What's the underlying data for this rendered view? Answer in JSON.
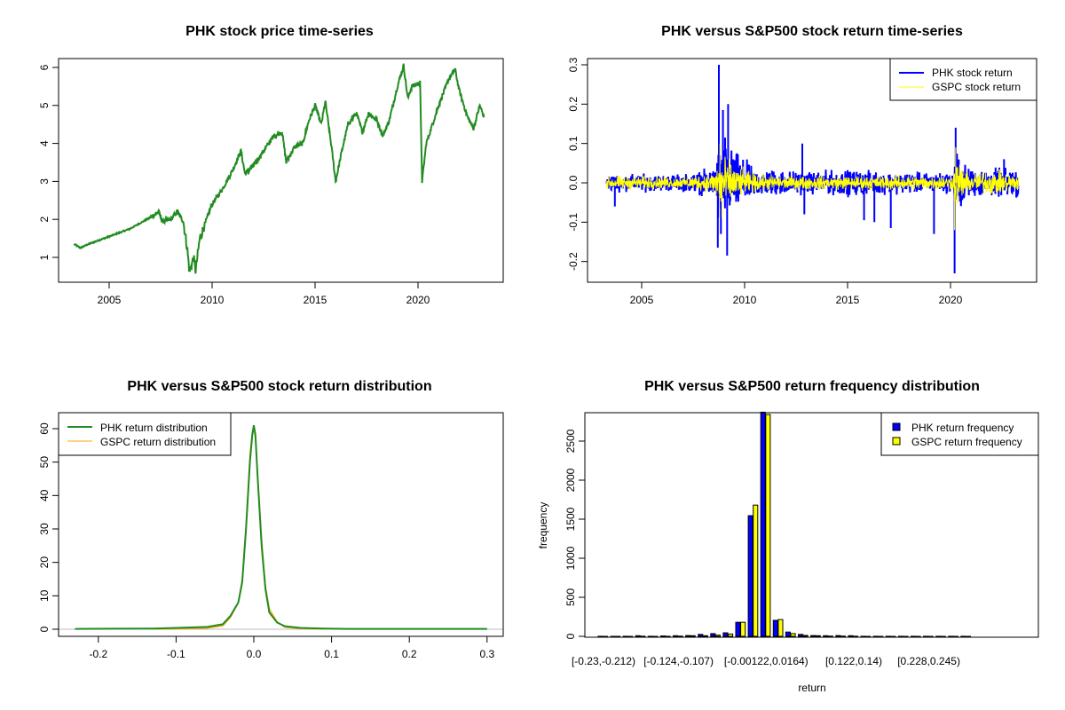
{
  "chart_data": [
    {
      "type": "line",
      "title": "PHK stock price time-series",
      "xlabel": "",
      "ylabel": "",
      "xticks": [
        "2005",
        "2010",
        "2015",
        "2020"
      ],
      "yticks": [
        "1",
        "2",
        "3",
        "4",
        "5",
        "6"
      ],
      "xlim": [
        2003.3,
        2023.3
      ],
      "ylim": [
        0.55,
        6.05
      ],
      "color": "#228B22",
      "x": [
        2003.3,
        2003.6,
        2004.0,
        2004.5,
        2005.0,
        2005.5,
        2006.0,
        2006.5,
        2007.0,
        2007.4,
        2007.6,
        2008.0,
        2008.3,
        2008.6,
        2008.8,
        2008.9,
        2009.1,
        2009.2,
        2009.4,
        2009.6,
        2010.0,
        2010.5,
        2011.0,
        2011.4,
        2011.6,
        2012.0,
        2012.5,
        2013.0,
        2013.4,
        2013.6,
        2014.0,
        2014.4,
        2014.7,
        2015.0,
        2015.3,
        2015.5,
        2015.8,
        2016.0,
        2016.3,
        2016.6,
        2017.0,
        2017.3,
        2017.6,
        2018.0,
        2018.3,
        2018.6,
        2019.0,
        2019.3,
        2019.5,
        2019.7,
        2020.1,
        2020.2,
        2020.4,
        2020.7,
        2021.0,
        2021.5,
        2021.8,
        2022.0,
        2022.4,
        2022.7,
        2023.0,
        2023.2
      ],
      "y": [
        1.35,
        1.25,
        1.35,
        1.45,
        1.55,
        1.65,
        1.75,
        1.9,
        2.05,
        2.2,
        1.95,
        2.0,
        2.2,
        1.95,
        1.2,
        0.6,
        1.0,
        0.65,
        1.5,
        1.8,
        2.4,
        2.8,
        3.3,
        3.8,
        3.2,
        3.4,
        3.8,
        4.2,
        4.3,
        3.5,
        3.9,
        4.0,
        4.6,
        5.0,
        4.5,
        5.1,
        3.9,
        3.0,
        3.8,
        4.5,
        4.8,
        4.3,
        4.8,
        4.6,
        4.2,
        4.6,
        5.5,
        6.05,
        5.2,
        5.5,
        5.6,
        3.0,
        4.0,
        4.5,
        5.0,
        5.7,
        5.95,
        5.4,
        4.7,
        4.4,
        5.0,
        4.7
      ]
    },
    {
      "type": "line",
      "title": "PHK versus S&P500 stock return time-series",
      "xlabel": "",
      "ylabel": "",
      "xticks": [
        "2005",
        "2010",
        "2015",
        "2020"
      ],
      "yticks": [
        "-0.2",
        "-0.1",
        "0.0",
        "0.1",
        "0.2",
        "0.3"
      ],
      "xlim": [
        2003.3,
        2023.3
      ],
      "ylim": [
        -0.23,
        0.3
      ],
      "legend": {
        "position": "top-right",
        "entries": [
          "PHK stock return",
          "GSPC stock return"
        ]
      },
      "series": [
        {
          "name": "PHK stock return",
          "color": "#0000FF",
          "volatility": {
            "x": [
              2003.3,
              2007.0,
              2008.5,
              2008.7,
              2009.5,
              2010.5,
              2012.0,
              2013.0,
              2015.0,
              2017.0,
              2019.0,
              2020.1,
              2020.3,
              2020.8,
              2022.0,
              2023.3
            ],
            "y": [
              0.012,
              0.012,
              0.02,
              0.06,
              0.045,
              0.02,
              0.018,
              0.015,
              0.018,
              0.015,
              0.014,
              0.014,
              0.05,
              0.02,
              0.02,
              0.02
            ]
          },
          "spikes": {
            "x": [
              2003.7,
              2008.7,
              2008.75,
              2008.85,
              2008.95,
              2009.05,
              2009.15,
              2009.2,
              2012.8,
              2012.9,
              2015.8,
              2016.3,
              2017.1,
              2019.2,
              2020.2,
              2020.25,
              2022.6
            ],
            "y": [
              -0.06,
              -0.165,
              0.3,
              -0.13,
              0.185,
              0.115,
              -0.185,
              0.2,
              0.1,
              -0.08,
              -0.095,
              -0.1,
              -0.115,
              -0.13,
              -0.23,
              0.14,
              0.06
            ]
          }
        },
        {
          "name": "GSPC stock return",
          "color": "#FFFF00",
          "volatility": {
            "x": [
              2003.3,
              2007.0,
              2008.5,
              2008.8,
              2009.5,
              2010.5,
              2012.0,
              2015.0,
              2018.0,
              2020.1,
              2020.3,
              2020.8,
              2022.0,
              2023.3
            ],
            "y": [
              0.01,
              0.008,
              0.015,
              0.045,
              0.025,
              0.013,
              0.01,
              0.01,
              0.011,
              0.01,
              0.04,
              0.013,
              0.018,
              0.012
            ]
          },
          "spikes": {
            "x": [
              2008.8,
              2008.9,
              2020.2,
              2020.25
            ],
            "y": [
              0.1,
              -0.09,
              -0.12,
              0.09
            ]
          }
        }
      ]
    },
    {
      "type": "line",
      "title": "PHK versus S&P500 stock return distribution",
      "xlabel": "",
      "ylabel": "",
      "xticks": [
        "-0.2",
        "-0.1",
        "0.0",
        "0.1",
        "0.2",
        "0.3"
      ],
      "yticks": [
        "0",
        "10",
        "20",
        "30",
        "40",
        "50",
        "60"
      ],
      "xlim": [
        -0.23,
        0.3
      ],
      "ylim": [
        0,
        61
      ],
      "baseline_color": "#BEBEBE",
      "legend": {
        "position": "top-left",
        "entries": [
          "PHK return distribution",
          "GSPC return distribution"
        ]
      },
      "series": [
        {
          "name": "PHK return distribution",
          "color": "#228B22",
          "x": [
            -0.23,
            -0.13,
            -0.1,
            -0.06,
            -0.04,
            -0.03,
            -0.02,
            -0.015,
            -0.01,
            -0.005,
            -0.002,
            0,
            0.002,
            0.005,
            0.01,
            0.015,
            0.02,
            0.03,
            0.04,
            0.06,
            0.09,
            0.12,
            0.3
          ],
          "y": [
            0.1,
            0.2,
            0.4,
            0.7,
            1.5,
            4,
            8,
            14,
            30,
            50,
            58,
            61,
            58,
            45,
            25,
            12,
            5,
            2,
            0.9,
            0.4,
            0.2,
            0.1,
            0.1
          ]
        },
        {
          "name": "GSPC return distribution",
          "color": "#FFA500",
          "x": [
            -0.13,
            -0.1,
            -0.06,
            -0.04,
            -0.03,
            -0.02,
            -0.015,
            -0.01,
            -0.005,
            -0.002,
            0,
            0.002,
            0.005,
            0.01,
            0.015,
            0.02,
            0.03,
            0.04,
            0.06,
            0.09
          ],
          "y": [
            0,
            0.1,
            0.3,
            1,
            3.5,
            8,
            15,
            31,
            52,
            59,
            60,
            57,
            46,
            27,
            13,
            6,
            2.2,
            0.6,
            0.2,
            0
          ]
        }
      ]
    },
    {
      "type": "bar",
      "title": "PHK versus S&P500 return frequency distribution",
      "xlabel": "return",
      "ylabel": "frequency",
      "yticks": [
        "0",
        "500",
        "1000",
        "1500",
        "2000",
        "2500"
      ],
      "ylim": [
        0,
        2870
      ],
      "categories": [
        "[-0.23,-0.212)",
        "",
        "",
        "",
        "",
        "",
        "[-0.124,-0.107)",
        "",
        "",
        "",
        "",
        "",
        "",
        "[-0.00122,0.0164)",
        "",
        "",
        "",
        "",
        "",
        "",
        "[0.122,0.14)",
        "",
        "",
        "",
        "",
        "",
        "[0.228,0.245)",
        "",
        "",
        ""
      ],
      "legend": {
        "position": "top-right",
        "entries": [
          "PHK return frequency",
          "GSPC return frequency"
        ]
      },
      "series": [
        {
          "name": "PHK return frequency",
          "color": "#0000FF",
          "values": [
            1,
            0,
            1,
            8,
            1,
            5,
            8,
            10,
            25,
            35,
            45,
            180,
            1545,
            2870,
            205,
            55,
            25,
            10,
            8,
            10,
            8,
            1,
            1,
            1,
            1,
            1,
            1,
            1,
            1,
            1
          ]
        },
        {
          "name": "GSPC return frequency",
          "color": "#FFFF00",
          "values": [
            0,
            0,
            0,
            2,
            0,
            1,
            3,
            8,
            8,
            15,
            30,
            180,
            1680,
            2840,
            215,
            35,
            12,
            8,
            3,
            3,
            2,
            0,
            0,
            0,
            0,
            0,
            0,
            0,
            0,
            0
          ]
        }
      ]
    }
  ]
}
